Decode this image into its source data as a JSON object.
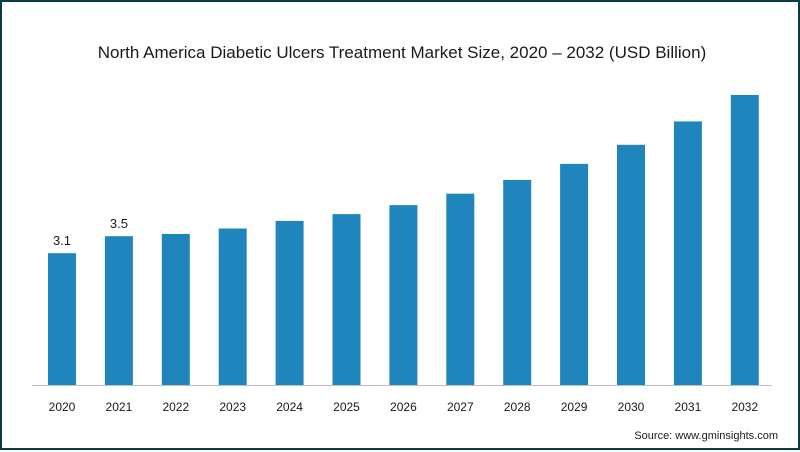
{
  "title": "North America Diabetic Ulcers Treatment Market Size, 2020 – 2032 (USD Billion)",
  "source": "Source: www.gminsights.com",
  "colors": {
    "bar": "#2185bd",
    "axis": "#bfbfbf",
    "frame": "#0b3a4f"
  },
  "chart_data": {
    "type": "bar",
    "title": "North America Diabetic Ulcers Treatment Market Size, 2020 – 2032 (USD Billion)",
    "xlabel": "",
    "ylabel": "",
    "categories": [
      "2020",
      "2021",
      "2022",
      "2023",
      "2024",
      "2025",
      "2026",
      "2027",
      "2028",
      "2029",
      "2030",
      "2031",
      "2032"
    ],
    "values": [
      3.1,
      3.5,
      3.55,
      3.68,
      3.86,
      4.02,
      4.23,
      4.5,
      4.82,
      5.2,
      5.65,
      6.2,
      6.82
    ],
    "data_labels": [
      "3.1",
      "3.5",
      "",
      "",
      "",
      "",
      "",
      "",
      "",
      "",
      "",
      "",
      ""
    ],
    "ylim": [
      0,
      6.82
    ],
    "grid": false,
    "legend": "none"
  }
}
